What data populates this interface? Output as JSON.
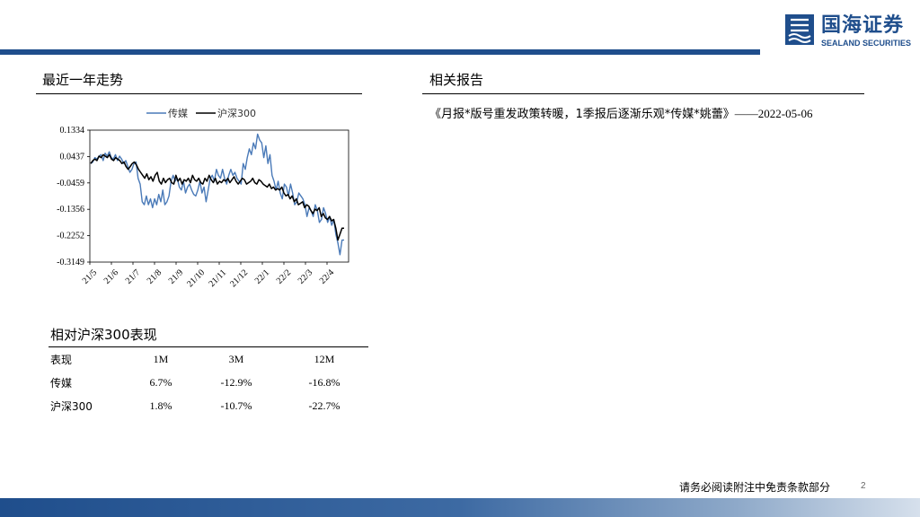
{
  "brand": {
    "name_cn": "国海证券",
    "name_en": "SEALAND SECURITIES",
    "color": "#1f4e8c"
  },
  "left_section": {
    "title": "最近一年走势"
  },
  "right_section": {
    "title": "相关报告",
    "report_title": "《月报*版号重发政策转暖，1季报后逐渐乐观*传媒*姚蕾》",
    "report_sep": "——",
    "report_date": "2022-05-06"
  },
  "chart_data": {
    "type": "line",
    "title": "",
    "legend": [
      "传媒",
      "沪深300"
    ],
    "yticks": [
      "0.1334",
      "0.0437",
      "-0.0459",
      "-0.1356",
      "-0.2252",
      "-0.3149"
    ],
    "ylim": [
      -0.3149,
      0.1334
    ],
    "xticks": [
      "21/5",
      "21/6",
      "21/7",
      "21/8",
      "21/9",
      "21/10",
      "21/11",
      "21/12",
      "22/1",
      "22/2",
      "22/3",
      "22/4"
    ],
    "series": [
      {
        "name": "传媒",
        "color": "#4a7ab8",
        "values": [
          0.02,
          0.025,
          0.04,
          0.035,
          0.045,
          0.05,
          0.03,
          0.055,
          0.045,
          0.06,
          0.04,
          0.035,
          0.05,
          0.03,
          0.045,
          0.035,
          0.02,
          0.03,
          0.01,
          -0.01,
          0.0,
          0.02,
          0.025,
          -0.03,
          -0.05,
          -0.11,
          -0.12,
          -0.09,
          -0.12,
          -0.1,
          -0.13,
          -0.1,
          -0.12,
          -0.085,
          -0.11,
          -0.07,
          -0.12,
          -0.11,
          -0.09,
          -0.04,
          -0.02,
          -0.04,
          -0.03,
          -0.06,
          -0.07,
          -0.04,
          -0.08,
          -0.06,
          -0.05,
          -0.07,
          -0.085,
          -0.09,
          -0.07,
          -0.04,
          -0.08,
          -0.06,
          -0.11,
          -0.07,
          -0.03,
          -0.02,
          -0.04,
          0.0,
          -0.02,
          -0.03,
          0.0,
          -0.03,
          -0.05,
          -0.02,
          0.0,
          -0.02,
          -0.01,
          -0.03,
          -0.04,
          -0.05,
          0.02,
          0.0,
          0.04,
          0.07,
          0.05,
          0.09,
          0.07,
          0.12,
          0.1,
          0.09,
          0.04,
          0.08,
          0.02,
          0.05,
          -0.02,
          -0.04,
          -0.07,
          -0.04,
          -0.08,
          -0.1,
          -0.05,
          -0.06,
          -0.09,
          -0.05,
          -0.08,
          -0.12,
          -0.11,
          -0.08,
          -0.09,
          -0.1,
          -0.12,
          -0.16,
          -0.13,
          -0.14,
          -0.16,
          -0.12,
          -0.14,
          -0.18,
          -0.17,
          -0.13,
          -0.15,
          -0.18,
          -0.16,
          -0.19,
          -0.17,
          -0.22,
          -0.25,
          -0.29,
          -0.24,
          -0.24
        ],
        "ylabel": ""
      },
      {
        "name": "沪深300",
        "color": "#000000",
        "values": [
          0.02,
          0.03,
          0.035,
          0.03,
          0.045,
          0.04,
          0.05,
          0.045,
          0.04,
          0.05,
          0.035,
          0.03,
          0.04,
          0.035,
          0.03,
          0.02,
          0.025,
          0.01,
          0.0,
          0.01,
          0.02,
          0.025,
          0.015,
          0.0,
          -0.01,
          -0.02,
          -0.03,
          -0.015,
          -0.035,
          -0.025,
          -0.04,
          -0.02,
          -0.01,
          -0.04,
          -0.05,
          -0.03,
          -0.045,
          -0.035,
          -0.03,
          -0.045,
          -0.05,
          -0.02,
          -0.04,
          -0.03,
          -0.05,
          -0.035,
          -0.04,
          -0.03,
          -0.045,
          -0.02,
          -0.035,
          -0.04,
          -0.03,
          -0.045,
          -0.05,
          -0.03,
          -0.04,
          -0.02,
          -0.035,
          -0.045,
          -0.03,
          -0.05,
          -0.04,
          -0.045,
          -0.035,
          -0.04,
          -0.03,
          -0.045,
          -0.035,
          -0.025,
          -0.04,
          -0.05,
          -0.04,
          -0.03,
          -0.035,
          -0.05,
          -0.045,
          -0.04,
          -0.03,
          -0.045,
          -0.05,
          -0.035,
          -0.04,
          -0.05,
          -0.055,
          -0.06,
          -0.05,
          -0.065,
          -0.06,
          -0.07,
          -0.065,
          -0.07,
          -0.06,
          -0.08,
          -0.09,
          -0.085,
          -0.1,
          -0.09,
          -0.11,
          -0.1,
          -0.12,
          -0.115,
          -0.11,
          -0.13,
          -0.12,
          -0.125,
          -0.14,
          -0.15,
          -0.135,
          -0.14,
          -0.13,
          -0.16,
          -0.15,
          -0.165,
          -0.17,
          -0.16,
          -0.175,
          -0.17,
          -0.2,
          -0.24,
          -0.22,
          -0.2,
          -0.2
        ]
      }
    ]
  },
  "perf_table": {
    "title": "相对沪深300表现",
    "header": [
      "表现",
      "1M",
      "3M",
      "12M"
    ],
    "rows": [
      [
        "传媒",
        "6.7%",
        "-12.9%",
        "-16.8%"
      ],
      [
        "沪深300",
        "1.8%",
        "-10.7%",
        "-22.7%"
      ]
    ]
  },
  "footer": {
    "disclaimer": "请务必阅读附注中免责条款部分",
    "page": "2"
  }
}
